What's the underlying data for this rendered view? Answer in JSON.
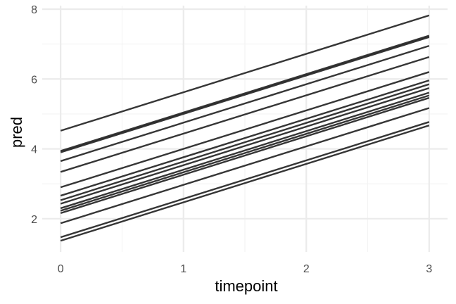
{
  "chart_data": {
    "type": "line",
    "title": "",
    "xlabel": "timepoint",
    "ylabel": "pred",
    "xlim": [
      -0.15,
      3.15
    ],
    "ylim": [
      1.05,
      8.1
    ],
    "x_ticks": [
      0,
      1,
      2,
      3
    ],
    "x_tick_labels": [
      "0",
      "1",
      "2",
      "3"
    ],
    "y_ticks": [
      2,
      4,
      6,
      8
    ],
    "y_tick_labels": [
      "2",
      "4",
      "6",
      "8"
    ],
    "x_minor_ticks": [
      0.5,
      1.5,
      2.5
    ],
    "y_minor_ticks": [
      3,
      5,
      7
    ],
    "grid": true,
    "legend": "none",
    "colors": {
      "background": "#ffffff",
      "grid_major": "#ebebeb",
      "grid_minor": "#f3f3f3",
      "line": "#1a1a1a"
    },
    "x": [
      0,
      3
    ],
    "series": [
      {
        "values": [
          4.52,
          7.82
        ]
      },
      {
        "values": [
          3.94,
          7.24
        ]
      },
      {
        "values": [
          3.9,
          7.2
        ]
      },
      {
        "values": [
          3.65,
          6.95
        ]
      },
      {
        "values": [
          3.34,
          6.63
        ]
      },
      {
        "values": [
          2.9,
          6.2
        ]
      },
      {
        "values": [
          2.66,
          5.96
        ]
      },
      {
        "values": [
          2.53,
          5.85
        ]
      },
      {
        "values": [
          2.43,
          5.74
        ]
      },
      {
        "values": [
          2.3,
          5.61
        ]
      },
      {
        "values": [
          2.23,
          5.53
        ]
      },
      {
        "values": [
          2.16,
          5.46
        ]
      },
      {
        "values": [
          1.87,
          5.17
        ]
      },
      {
        "values": [
          1.47,
          4.77
        ]
      },
      {
        "values": [
          1.37,
          4.67
        ]
      }
    ]
  }
}
